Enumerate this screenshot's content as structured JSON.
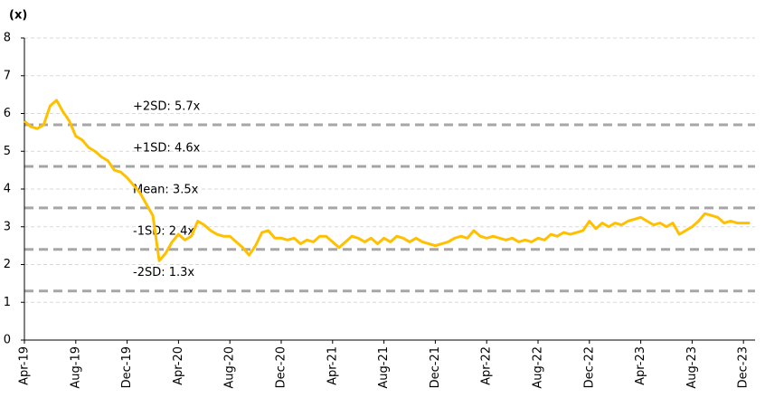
{
  "chart_data": {
    "type": "line",
    "y_label": "(x)",
    "categories": [
      "Apr-19",
      null,
      null,
      null,
      null,
      null,
      null,
      null,
      "Aug-19",
      null,
      null,
      null,
      null,
      null,
      null,
      null,
      "Dec-19",
      null,
      null,
      null,
      null,
      null,
      null,
      null,
      "Apr-20",
      null,
      null,
      null,
      null,
      null,
      null,
      null,
      "Aug-20",
      null,
      null,
      null,
      null,
      null,
      null,
      null,
      "Dec-20",
      null,
      null,
      null,
      null,
      null,
      null,
      null,
      "Apr-21",
      null,
      null,
      null,
      null,
      null,
      null,
      null,
      "Aug-21",
      null,
      null,
      null,
      null,
      null,
      null,
      null,
      "Dec-21",
      null,
      null,
      null,
      null,
      null,
      null,
      null,
      "Apr-22",
      null,
      null,
      null,
      null,
      null,
      null,
      null,
      "Aug-22",
      null,
      null,
      null,
      null,
      null,
      null,
      null,
      "Dec-22",
      null,
      null,
      null,
      null,
      null,
      null,
      null,
      "Apr-23",
      null,
      null,
      null,
      null,
      null,
      null,
      null,
      "Aug-23",
      null,
      null,
      null,
      null,
      null,
      null,
      null,
      "Dec-23",
      null
    ],
    "values": [
      5.8,
      5.65,
      5.6,
      5.7,
      6.2,
      6.35,
      6.05,
      5.8,
      5.4,
      5.3,
      5.1,
      5.0,
      4.85,
      4.75,
      4.5,
      4.45,
      4.3,
      4.1,
      3.9,
      3.6,
      3.3,
      2.1,
      2.3,
      2.6,
      2.8,
      2.65,
      2.75,
      3.15,
      3.05,
      2.9,
      2.8,
      2.75,
      2.75,
      2.6,
      2.45,
      2.25,
      2.5,
      2.85,
      2.9,
      2.7,
      2.7,
      2.65,
      2.7,
      2.55,
      2.65,
      2.6,
      2.75,
      2.75,
      2.6,
      2.45,
      2.6,
      2.75,
      2.7,
      2.6,
      2.7,
      2.55,
      2.7,
      2.6,
      2.75,
      2.7,
      2.6,
      2.7,
      2.6,
      2.55,
      2.5,
      2.55,
      2.6,
      2.7,
      2.75,
      2.7,
      2.9,
      2.75,
      2.7,
      2.75,
      2.7,
      2.65,
      2.7,
      2.6,
      2.65,
      2.6,
      2.7,
      2.65,
      2.8,
      2.75,
      2.85,
      2.8,
      2.85,
      2.9,
      3.15,
      2.95,
      3.1,
      3.0,
      3.1,
      3.05,
      3.15,
      3.2,
      3.25,
      3.15,
      3.05,
      3.1,
      3.0,
      3.1,
      2.8,
      2.9,
      3.0,
      3.15,
      3.35,
      3.3,
      3.25,
      3.1,
      3.15,
      3.1,
      3.1,
      3.1
    ],
    "color": "#ffc000",
    "ylim": [
      0,
      8
    ],
    "yticks": [
      0,
      1,
      2,
      3,
      4,
      5,
      6,
      7,
      8
    ],
    "grid": true,
    "bands": [
      {
        "label": "+2SD: 5.7x",
        "value": 5.7
      },
      {
        "label": "+1SD: 4.6x",
        "value": 4.6
      },
      {
        "label": "Mean: 3.5x",
        "value": 3.5
      },
      {
        "label": "-1SD: 2.4x",
        "value": 2.4
      },
      {
        "label": "-2SD: 1.3x",
        "value": 1.3
      }
    ],
    "band_color": "#a6a6a6"
  }
}
